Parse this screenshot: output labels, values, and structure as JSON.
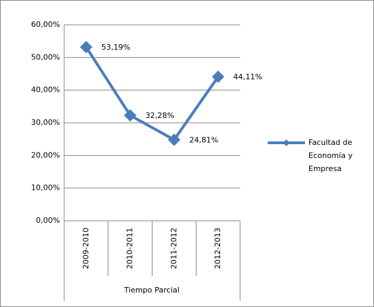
{
  "chart_data": {
    "type": "line",
    "categories": [
      "2009-2010",
      "2010-2011",
      "2011-2012",
      "2012-2013"
    ],
    "xlabel": "Tiempo Parcial",
    "series": [
      {
        "name": "Facultad de Economía y Empresa",
        "color": "#4a7ebb",
        "values": [
          53.19,
          32.28,
          24.81,
          44.11
        ],
        "value_labels": [
          "53,19%",
          "32,28%",
          "24,81%",
          "44,11%"
        ]
      }
    ],
    "ylim": [
      0,
      60
    ],
    "yticks": [
      {
        "value": 0,
        "label": "0,00%"
      },
      {
        "value": 10,
        "label": "10,00%"
      },
      {
        "value": 20,
        "label": "20,00%"
      },
      {
        "value": 30,
        "label": "30,00%"
      },
      {
        "value": 40,
        "label": "40,00%"
      },
      {
        "value": 50,
        "label": "50,00%"
      },
      {
        "value": 60,
        "label": "60,00%"
      }
    ],
    "grid": true,
    "legend": "right"
  }
}
